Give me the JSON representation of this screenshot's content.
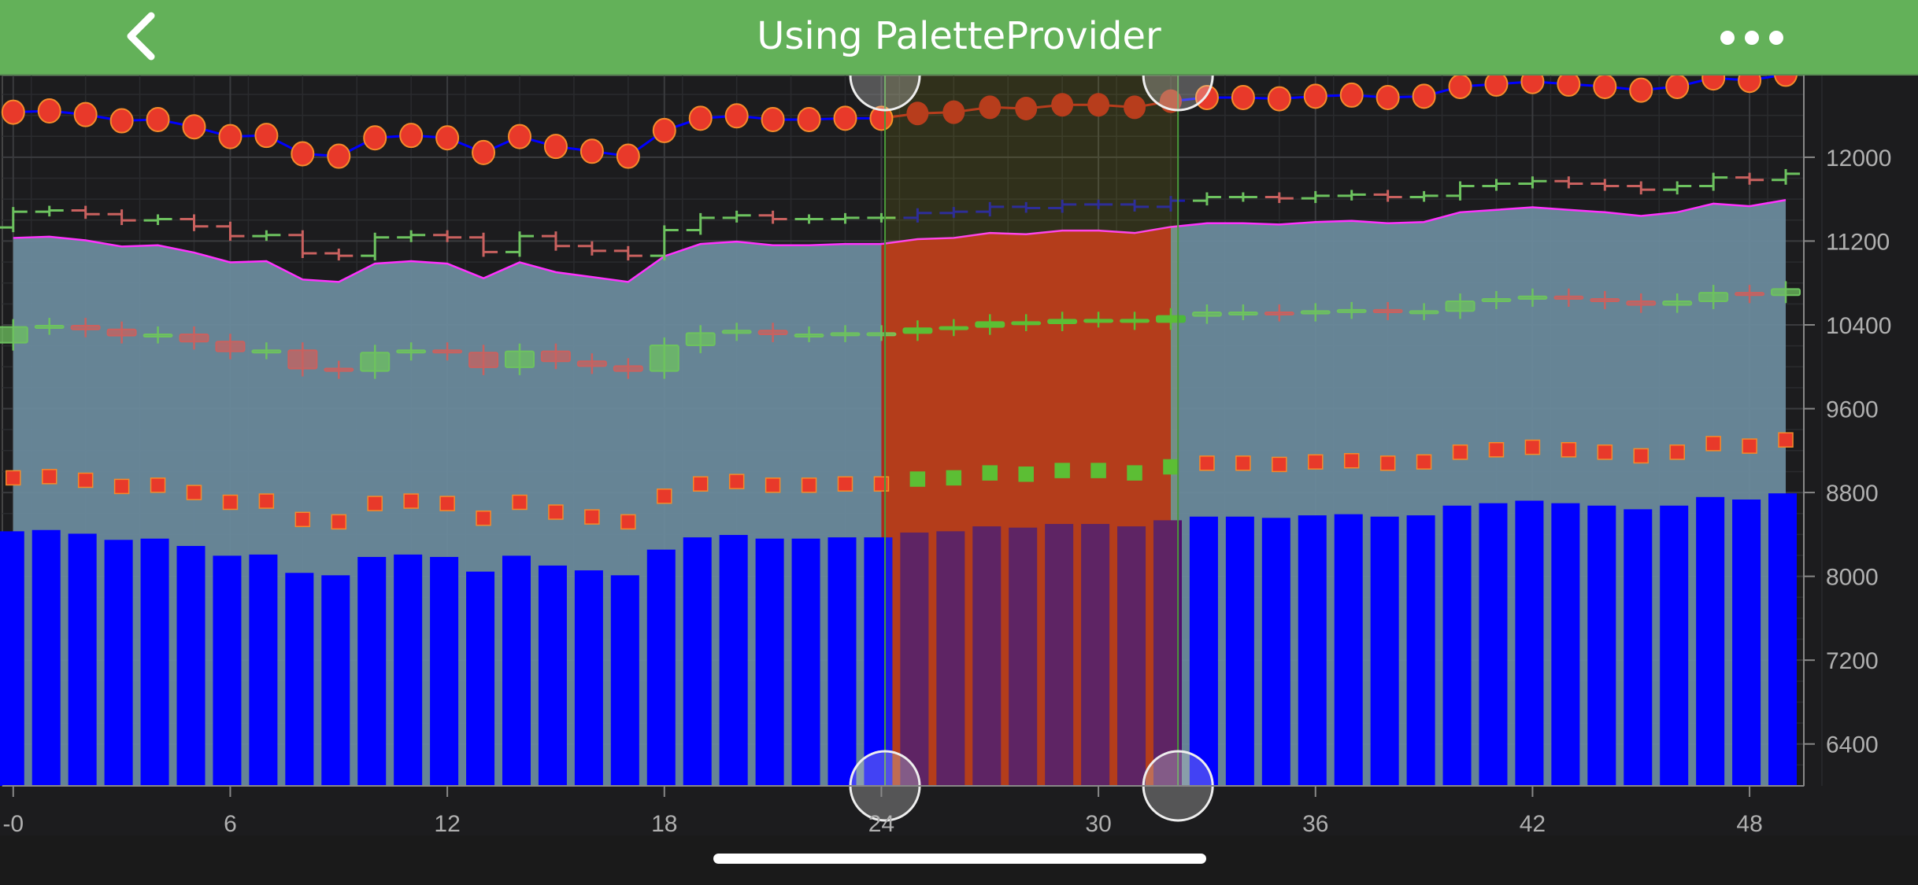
{
  "header": {
    "title": "Using PaletteProvider",
    "back_icon": "chevron-left-icon",
    "more_icon": "ellipsis-icon"
  },
  "chart_data": {
    "type": "combined",
    "x_axis": {
      "range": [
        -0.3,
        49.5
      ],
      "ticks": [
        0,
        6,
        12,
        18,
        24,
        30,
        36,
        42,
        48
      ],
      "tick_labels": [
        "-0",
        "6",
        "12",
        "18",
        "24",
        "30",
        "36",
        "42",
        "48"
      ]
    },
    "y_axis": {
      "range": [
        6000,
        12780
      ],
      "ticks": [
        6400,
        7200,
        8000,
        8800,
        9600,
        10400,
        11200,
        12000
      ],
      "tick_labels": [
        "6400",
        "7200",
        "8000",
        "8800",
        "9600",
        "10400",
        "11200",
        "12000"
      ],
      "position": "right"
    },
    "grid": true,
    "x": [
      0,
      1,
      2,
      3,
      4,
      5,
      6,
      7,
      8,
      9,
      10,
      11,
      12,
      13,
      14,
      15,
      16,
      17,
      18,
      19,
      20,
      21,
      22,
      23,
      24,
      25,
      26,
      27,
      28,
      29,
      30,
      31,
      32,
      33,
      34,
      35,
      36,
      37,
      38,
      39,
      40,
      41,
      42,
      43,
      44,
      45,
      46,
      47,
      48,
      49
    ],
    "column": [
      8430,
      8442,
      8407,
      8348,
      8360,
      8290,
      8197,
      8208,
      8033,
      8010,
      8185,
      8208,
      8185,
      8045,
      8197,
      8103,
      8057,
      8010,
      8255,
      8372,
      8395,
      8360,
      8360,
      8372,
      8372,
      8418,
      8430,
      8477,
      8465,
      8500,
      8500,
      8477,
      8535,
      8570,
      8570,
      8558,
      8582,
      8593,
      8570,
      8582,
      8675,
      8698,
      8722,
      8698,
      8675,
      8640,
      8675,
      8757,
      8733,
      8792
    ],
    "mountain": [
      11230,
      11242,
      11207,
      11148,
      11160,
      11090,
      10997,
      11008,
      10833,
      10810,
      10985,
      11008,
      10985,
      10845,
      10997,
      10903,
      10857,
      10810,
      11055,
      11172,
      11195,
      11160,
      11160,
      11172,
      11172,
      11218,
      11230,
      11277,
      11265,
      11300,
      11300,
      11277,
      11335,
      11370,
      11370,
      11358,
      11382,
      11393,
      11370,
      11382,
      11475,
      11498,
      11522,
      11498,
      11475,
      11440,
      11475,
      11557,
      11533,
      11592
    ],
    "ohlc": {
      "open": [
        11330,
        11480,
        11492,
        11457,
        11398,
        11410,
        11340,
        11247,
        11258,
        11083,
        11060,
        11235,
        11258,
        11235,
        11095,
        11247,
        11153,
        11107,
        11060,
        11305,
        11422,
        11445,
        11410,
        11410,
        11422,
        11422,
        11468,
        11480,
        11527,
        11515,
        11550,
        11550,
        11527,
        11585,
        11620,
        11620,
        11608,
        11632,
        11643,
        11620,
        11632,
        11725,
        11748,
        11772,
        11748,
        11725,
        11690,
        11725,
        11807,
        11783
      ],
      "close": [
        11480,
        11492,
        11457,
        11398,
        11410,
        11340,
        11247,
        11258,
        11083,
        11060,
        11235,
        11258,
        11235,
        11095,
        11247,
        11153,
        11107,
        11060,
        11305,
        11422,
        11445,
        11410,
        11410,
        11422,
        11422,
        11468,
        11480,
        11527,
        11515,
        11550,
        11550,
        11527,
        11585,
        11620,
        11620,
        11608,
        11632,
        11643,
        11620,
        11632,
        11725,
        11748,
        11772,
        11748,
        11725,
        11690,
        11725,
        11807,
        11783,
        11842
      ]
    },
    "candlestick": {
      "open": [
        10230,
        10380,
        10392,
        10357,
        10298,
        10310,
        10240,
        10147,
        10158,
        9983,
        9960,
        10135,
        10158,
        10135,
        9995,
        10147,
        10053,
        10007,
        9960,
        10205,
        10322,
        10345,
        10310,
        10310,
        10322,
        10322,
        10368,
        10380,
        10427,
        10415,
        10450,
        10450,
        10427,
        10485,
        10520,
        10520,
        10508,
        10532,
        10543,
        10520,
        10532,
        10625,
        10648,
        10672,
        10648,
        10625,
        10590,
        10625,
        10707,
        10683
      ],
      "close": [
        10380,
        10392,
        10357,
        10298,
        10310,
        10240,
        10147,
        10158,
        9983,
        9960,
        10135,
        10158,
        10135,
        9995,
        10147,
        10053,
        10007,
        9960,
        10205,
        10322,
        10345,
        10310,
        10310,
        10322,
        10322,
        10368,
        10380,
        10427,
        10415,
        10450,
        10450,
        10427,
        10485,
        10520,
        10520,
        10508,
        10532,
        10543,
        10520,
        10532,
        10625,
        10648,
        10672,
        10648,
        10625,
        10590,
        10625,
        10707,
        10683,
        10742
      ]
    },
    "scatter_squares": [
      8940,
      8952,
      8917,
      8858,
      8870,
      8800,
      8707,
      8718,
      8543,
      8520,
      8695,
      8718,
      8695,
      8555,
      8707,
      8613,
      8567,
      8520,
      8765,
      8882,
      8905,
      8870,
      8870,
      8882,
      8882,
      8928,
      8940,
      8987,
      8975,
      9010,
      9010,
      8987,
      9045,
      9080,
      9080,
      9068,
      9092,
      9103,
      9080,
      9092,
      9185,
      9208,
      9232,
      9208,
      9185,
      9150,
      9185,
      9267,
      9243,
      9302
    ],
    "line_circles": [
      12430,
      12442,
      12407,
      12348,
      12360,
      12290,
      12197,
      12208,
      12033,
      12010,
      12185,
      12208,
      12185,
      12045,
      12197,
      12103,
      12057,
      12010,
      12255,
      12372,
      12395,
      12360,
      12360,
      12372,
      12372,
      12418,
      12430,
      12477,
      12465,
      12500,
      12500,
      12477,
      12535,
      12570,
      12570,
      12558,
      12582,
      12593,
      12570,
      12582,
      12675,
      12698,
      12722,
      12698,
      12675,
      12640,
      12675,
      12757,
      12733,
      12792
    ],
    "selection_box": {
      "x1": 24.1,
      "x2": 32.2
    },
    "colors": {
      "background": "#1c1c1e",
      "column": "#0000ff",
      "column_selected": "#4f0f6e",
      "mountain_fill": "#6a8a9c",
      "mountain_stroke": "#ff33ff",
      "mountain_selected": "#ad2a1e",
      "up": "#6dc25f",
      "down": "#c9615f",
      "ohlc_selected": "#1a1aa8",
      "candle_selected": "#4cb83a",
      "square": "#e8392a",
      "square_selected": "#4cb83a",
      "circle": "#e8392a",
      "circle_stroke": "#f58a2a",
      "circle_selected": "#b02a1f",
      "line": "#0000ff",
      "line_selected": "#b02a1f",
      "box_fill": "rgba(255,255,0,0.09)",
      "box_stroke": "#4a9a3a"
    }
  }
}
